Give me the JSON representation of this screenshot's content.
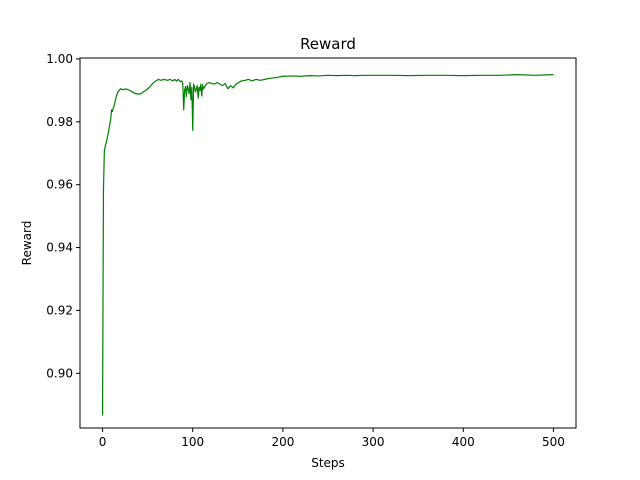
{
  "chart_data": {
    "type": "line",
    "title": "Reward",
    "xlabel": "Steps",
    "ylabel": "Reward",
    "xlim": [
      -25,
      525
    ],
    "ylim": [
      0.8826,
      1.0003
    ],
    "xticks": [
      0,
      100,
      200,
      300,
      400,
      500
    ],
    "yticks": [
      0.9,
      0.92,
      0.94,
      0.96,
      0.98,
      1.0
    ],
    "xtick_labels": [
      "0",
      "100",
      "200",
      "300",
      "400",
      "500"
    ],
    "ytick_labels": [
      "0.90",
      "0.92",
      "0.94",
      "0.96",
      "0.98",
      "1.00"
    ],
    "grid": false,
    "series": [
      {
        "color": "#008000",
        "x": [
          0,
          1,
          2,
          3,
          5,
          7,
          9,
          10,
          11,
          12,
          13,
          15,
          17,
          20,
          23,
          26,
          30,
          33,
          36,
          40,
          43,
          45,
          48,
          52,
          55,
          58,
          62,
          65,
          68,
          72,
          75,
          78,
          80,
          82,
          84,
          86,
          88,
          89,
          90,
          91,
          92,
          93,
          94,
          95,
          96,
          97,
          98,
          99,
          100,
          101,
          102,
          103,
          104,
          105,
          106,
          107,
          108,
          109,
          110,
          111,
          112,
          115,
          118,
          121,
          124,
          127,
          130,
          133,
          136,
          139,
          142,
          145,
          148,
          151,
          154,
          158,
          162,
          166,
          170,
          175,
          180,
          185,
          190,
          195,
          200,
          210,
          220,
          230,
          240,
          250,
          260,
          270,
          280,
          290,
          300,
          320,
          340,
          360,
          380,
          400,
          420,
          440,
          460,
          480,
          500
        ],
        "y": [
          0.8866,
          0.958,
          0.9708,
          0.9722,
          0.9745,
          0.9775,
          0.9808,
          0.9838,
          0.9833,
          0.9845,
          0.9852,
          0.9878,
          0.9895,
          0.9905,
          0.9902,
          0.9905,
          0.99,
          0.9895,
          0.989,
          0.9888,
          0.989,
          0.9895,
          0.99,
          0.991,
          0.992,
          0.9928,
          0.9935,
          0.9932,
          0.9935,
          0.9932,
          0.9935,
          0.993,
          0.9935,
          0.993,
          0.9935,
          0.9928,
          0.993,
          0.992,
          0.9838,
          0.99,
          0.9912,
          0.988,
          0.9915,
          0.9905,
          0.989,
          0.9925,
          0.987,
          0.991,
          0.9773,
          0.992,
          0.991,
          0.9895,
          0.9905,
          0.9915,
          0.9875,
          0.991,
          0.99,
          0.992,
          0.9882,
          0.9918,
          0.9905,
          0.992,
          0.9925,
          0.9922,
          0.992,
          0.9925,
          0.992,
          0.9915,
          0.9922,
          0.9905,
          0.9915,
          0.9908,
          0.992,
          0.9925,
          0.993,
          0.9932,
          0.9935,
          0.993,
          0.9935,
          0.9932,
          0.9935,
          0.9938,
          0.994,
          0.9942,
          0.9945,
          0.9946,
          0.9945,
          0.9947,
          0.9946,
          0.9948,
          0.9947,
          0.9948,
          0.9947,
          0.9948,
          0.9948,
          0.9948,
          0.9947,
          0.9948,
          0.9948,
          0.9947,
          0.9948,
          0.9948,
          0.995,
          0.9948,
          0.995
        ]
      }
    ]
  }
}
